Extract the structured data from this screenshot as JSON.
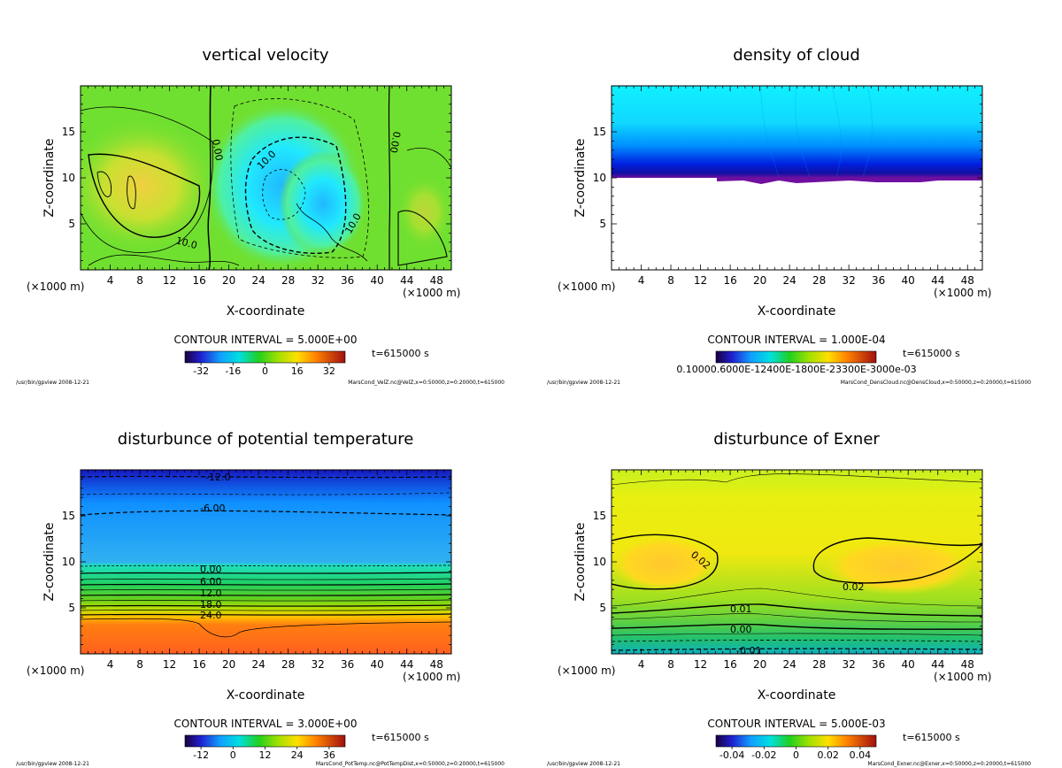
{
  "chart_data": [
    {
      "type": "heatmap",
      "title": "vertical velocity",
      "xlabel": "X-coordinate",
      "ylabel": "Z-coordinate",
      "x_unit": "(×1000 m)",
      "x_ticks": [
        4,
        8,
        12,
        16,
        20,
        24,
        28,
        32,
        36,
        40,
        44,
        48
      ],
      "y_ticks": [
        5,
        10,
        15
      ],
      "xlim": [
        0,
        50
      ],
      "ylim": [
        0,
        20
      ],
      "contour_interval": "CONTOUR INTERVAL = 5.000E+00",
      "time": "t=615000 s",
      "colorbar_ticks": [
        "-32",
        "-16",
        "0",
        "16",
        "32"
      ],
      "contour_labels": [
        "0.00",
        "10.0",
        "0.00",
        "10.0",
        "10.0"
      ],
      "footer_left": "/usr/bin/gpview  2008-12-21",
      "footer_right": "MarsCond_VelZ.nc@VelZ,x=0:50000,z=0:20000,t=615000"
    },
    {
      "type": "heatmap",
      "title": "density of cloud",
      "xlabel": "X-coordinate",
      "ylabel": "Z-coordinate",
      "x_unit": "(×1000 m)",
      "x_ticks": [
        4,
        8,
        12,
        16,
        20,
        24,
        28,
        32,
        36,
        40,
        44,
        48
      ],
      "y_ticks": [
        5,
        10,
        15
      ],
      "xlim": [
        0,
        50
      ],
      "ylim": [
        0,
        20
      ],
      "contour_interval": "CONTOUR INTERVAL = 1.000E-04",
      "time": "t=615000 s",
      "colorbar_ticks_text": "0.10000.6000E-12400E-1800E-23300E-3000e-03",
      "cloud_base_z": 10,
      "footer_left": "/usr/bin/gpview  2008-12-21",
      "footer_right": "MarsCond_DensCloud.nc@DensCloud,x=0:50000,z=0:20000,t=615000"
    },
    {
      "type": "heatmap",
      "title": "disturbunce of potential temperature",
      "xlabel": "X-coordinate",
      "ylabel": "Z-coordinate",
      "x_unit": "(×1000 m)",
      "x_ticks": [
        4,
        8,
        12,
        16,
        20,
        24,
        28,
        32,
        36,
        40,
        44,
        48
      ],
      "y_ticks": [
        5,
        10,
        15
      ],
      "xlim": [
        0,
        50
      ],
      "ylim": [
        0,
        20
      ],
      "contour_interval": "CONTOUR INTERVAL = 3.000E+00",
      "time": "t=615000 s",
      "colorbar_ticks": [
        "-12",
        "0",
        "12",
        "24",
        "36"
      ],
      "contour_labels": [
        "-12.0",
        "-6.00",
        "0.00",
        "6.00",
        "12.0",
        "18.0",
        "24.0"
      ],
      "footer_left": "/usr/bin/gpview  2008-12-21",
      "footer_right": "MarsCond_PotTemp.nc@PotTempDist,x=0:50000,z=0:20000,t=615000"
    },
    {
      "type": "heatmap",
      "title": "disturbunce of Exner",
      "xlabel": "X-coordinate",
      "ylabel": "Z-coordinate",
      "x_unit": "(×1000 m)",
      "x_ticks": [
        4,
        8,
        12,
        16,
        20,
        24,
        28,
        32,
        36,
        40,
        44,
        48
      ],
      "y_ticks": [
        5,
        10,
        15
      ],
      "xlim": [
        0,
        50
      ],
      "ylim": [
        0,
        20
      ],
      "contour_interval": "CONTOUR INTERVAL = 5.000E-03",
      "time": "t=615000 s",
      "colorbar_ticks": [
        "-0.04",
        "-0.02",
        "0",
        "0.02",
        "0.04"
      ],
      "contour_labels": [
        "0.02",
        "0.02",
        "0.01",
        "0.00",
        "-0.01"
      ],
      "footer_left": "/usr/bin/gpview  2008-12-21",
      "footer_right": "MarsCond_Exner.nc@Exner,x=0:50000,z=0:20000,t=615000"
    }
  ]
}
